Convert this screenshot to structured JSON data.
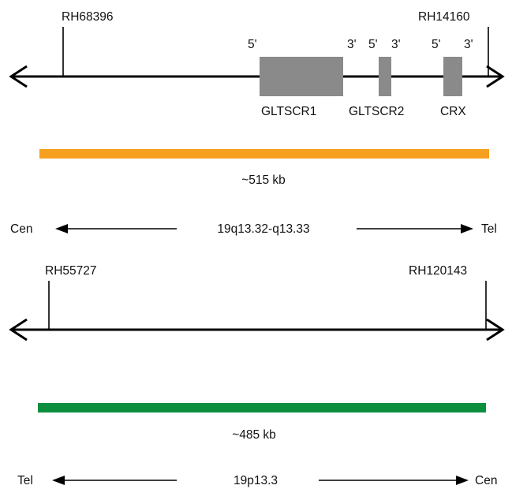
{
  "panel_top": {
    "marker_left": "RH68396",
    "marker_right": "RH14160",
    "genes": [
      {
        "name": "GLTSCR1",
        "five_prime": "5'",
        "three_prime": "3'"
      },
      {
        "name": "GLTSCR2",
        "five_prime": "5'",
        "three_prime": "3'"
      },
      {
        "name": "CRX",
        "five_prime": "5'",
        "three_prime": "3'"
      }
    ],
    "span_label": "~515 kb",
    "span_color": "#f5a01e",
    "end_left": "Cen",
    "end_right": "Tel",
    "locus": "19q13.32-q13.33"
  },
  "panel_bottom": {
    "marker_left": "RH55727",
    "marker_right": "RH120143",
    "span_label": "~485 kb",
    "span_color": "#0b8f3e",
    "end_left": "Tel",
    "end_right": "Cen",
    "locus": "19p13.3"
  },
  "colors": {
    "gene_box": "#8a8a8a",
    "line": "#000000"
  }
}
